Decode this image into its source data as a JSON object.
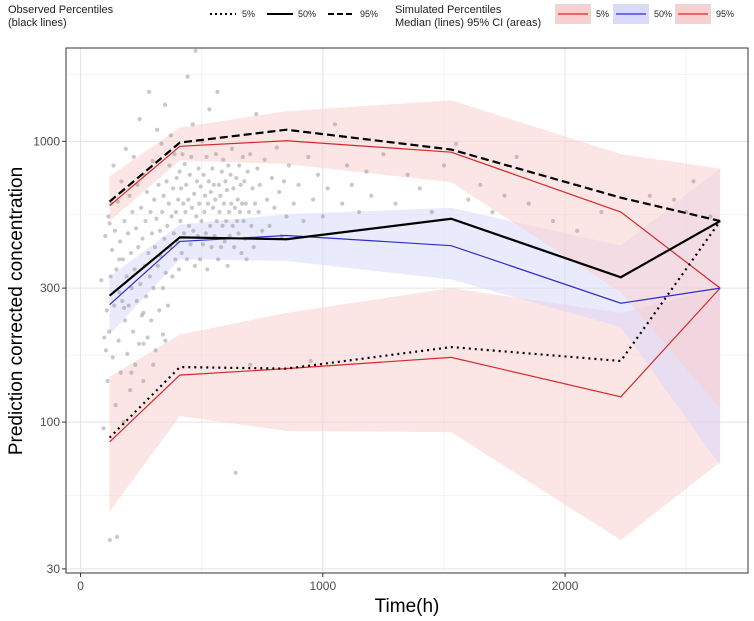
{
  "legend": {
    "observed": {
      "title_line1": "Observed Percentiles",
      "title_line2": "(black lines)",
      "items": [
        {
          "label": "5%",
          "style": "dotted"
        },
        {
          "label": "50%",
          "style": "solid"
        },
        {
          "label": "95%",
          "style": "dashed"
        }
      ]
    },
    "simulated": {
      "title_line1": "Simulated Percentiles",
      "title_line2": "Median (lines) 95% CI (areas)",
      "items": [
        {
          "label": "5%",
          "line_color": "#d42a2a",
          "fill_color": "#f9d0d0"
        },
        {
          "label": "50%",
          "line_color": "#2e2ec8",
          "fill_color": "#d9d9fb"
        },
        {
          "label": "95%",
          "line_color": "#d42a2a",
          "fill_color": "#f9d0d0"
        }
      ]
    }
  },
  "chart_data": {
    "type": "line",
    "title": "",
    "xlabel": "Time(h)",
    "ylabel": "Prediction corrected concentration",
    "xlim": [
      -60,
      2755
    ],
    "ylim": [
      29,
      2150
    ],
    "yscale": "log",
    "x_ticks": [
      0,
      1000,
      2000
    ],
    "y_ticks": [
      30,
      100,
      300,
      1000
    ],
    "grid": true,
    "x": [
      120,
      410,
      850,
      1530,
      2230,
      2640
    ],
    "observed_percentiles": [
      {
        "name": "5%",
        "style": "dotted",
        "color": "#000000",
        "values": [
          88,
          157,
          155,
          185,
          165,
          520
        ]
      },
      {
        "name": "50%",
        "style": "solid",
        "color": "#000000",
        "values": [
          282,
          455,
          448,
          530,
          328,
          520
        ]
      },
      {
        "name": "95%",
        "style": "dashed",
        "color": "#000000",
        "values": [
          610,
          990,
          1100,
          935,
          630,
          520
        ]
      }
    ],
    "simulated_medians": [
      {
        "name": "5%",
        "color": "#d42a2a",
        "values": [
          85,
          147,
          155,
          170,
          123,
          300
        ]
      },
      {
        "name": "50%",
        "color": "#2e2ec8",
        "values": [
          262,
          440,
          462,
          425,
          265,
          300
        ]
      },
      {
        "name": "95%",
        "color": "#d42a2a",
        "values": [
          590,
          960,
          1005,
          915,
          560,
          300
        ]
      }
    ],
    "simulated_ci": [
      {
        "name": "5%",
        "color": "#f9d0d0",
        "lower": [
          48,
          105,
          93,
          92,
          38,
          72
        ],
        "upper": [
          145,
          205,
          245,
          300,
          245,
          300
        ]
      },
      {
        "name": "50%",
        "color": "#d9d9fb",
        "lower": [
          205,
          380,
          375,
          322,
          218,
          70
        ],
        "upper": [
          330,
          505,
          550,
          580,
          425,
          800
        ]
      },
      {
        "name": "95%",
        "color": "#f9d0d0",
        "lower": [
          520,
          855,
          830,
          715,
          290,
          112
        ],
        "upper": [
          750,
          1120,
          1280,
          1400,
          900,
          800
        ]
      }
    ],
    "observed_points": [
      [
        86,
        320
      ],
      [
        95,
        95
      ],
      [
        98,
        200
      ],
      [
        102,
        460
      ],
      [
        105,
        180
      ],
      [
        108,
        250
      ],
      [
        112,
        140
      ],
      [
        115,
        540
      ],
      [
        118,
        210
      ],
      [
        121,
        38
      ],
      [
        124,
        330
      ],
      [
        127,
        600
      ],
      [
        130,
        410
      ],
      [
        133,
        170
      ],
      [
        136,
        820
      ],
      [
        139,
        260
      ],
      [
        142,
        480
      ],
      [
        145,
        115
      ],
      [
        148,
        350
      ],
      [
        151,
        39
      ],
      [
        154,
        610
      ],
      [
        157,
        195
      ],
      [
        160,
        290
      ],
      [
        163,
        440
      ],
      [
        166,
        150
      ],
      [
        169,
        720
      ],
      [
        172,
        270
      ],
      [
        175,
        380
      ],
      [
        178,
        100
      ],
      [
        181,
        520
      ],
      [
        184,
        230
      ],
      [
        187,
        940
      ],
      [
        190,
        330
      ],
      [
        193,
        175
      ],
      [
        196,
        470
      ],
      [
        199,
        260
      ],
      [
        202,
        640
      ],
      [
        205,
        130
      ],
      [
        208,
        400
      ],
      [
        211,
        300
      ],
      [
        214,
        560
      ],
      [
        217,
        210
      ],
      [
        220,
        880
      ],
      [
        223,
        350
      ],
      [
        226,
        160
      ],
      [
        229,
        490
      ],
      [
        232,
        270
      ],
      [
        235,
        700
      ],
      [
        238,
        420
      ],
      [
        241,
        190
      ],
      [
        244,
        1200
      ],
      [
        247,
        310
      ],
      [
        250,
        580
      ],
      [
        253,
        240
      ],
      [
        256,
        450
      ],
      [
        259,
        140
      ],
      [
        262,
        760
      ],
      [
        265,
        360
      ],
      [
        268,
        520
      ],
      [
        271,
        280
      ],
      [
        274,
        660
      ],
      [
        277,
        200
      ],
      [
        280,
        400
      ],
      [
        283,
        1500
      ],
      [
        286,
        330
      ],
      [
        289,
        560
      ],
      [
        292,
        230
      ],
      [
        295,
        470
      ],
      [
        298,
        850
      ],
      [
        301,
        300
      ],
      [
        304,
        620
      ],
      [
        307,
        420
      ],
      [
        310,
        180
      ],
      [
        313,
        530
      ],
      [
        316,
        1100
      ],
      [
        319,
        360
      ],
      [
        322,
        700
      ],
      [
        325,
        250
      ],
      [
        328,
        480
      ],
      [
        331,
        390
      ],
      [
        334,
        980
      ],
      [
        337,
        560
      ],
      [
        340,
        300
      ],
      [
        343,
        640
      ],
      [
        346,
        450
      ],
      [
        349,
        1350
      ],
      [
        352,
        340
      ],
      [
        355,
        720
      ],
      [
        358,
        500
      ],
      [
        361,
        260
      ],
      [
        364,
        600
      ],
      [
        367,
        820
      ],
      [
        370,
        420
      ],
      [
        373,
        1050
      ],
      [
        376,
        540
      ],
      [
        379,
        330
      ],
      [
        382,
        680
      ],
      [
        385,
        470
      ],
      [
        388,
        900
      ],
      [
        391,
        380
      ],
      [
        394,
        560
      ],
      [
        397,
        740
      ],
      [
        400,
        440
      ],
      [
        403,
        620
      ],
      [
        406,
        350
      ],
      [
        409,
        780
      ],
      [
        412,
        520
      ],
      [
        415,
        680
      ],
      [
        418,
        400
      ],
      [
        421,
        900
      ],
      [
        424,
        600
      ],
      [
        427,
        470
      ],
      [
        430,
        830
      ],
      [
        433,
        560
      ],
      [
        436,
        700
      ],
      [
        439,
        380
      ],
      [
        442,
        1700
      ],
      [
        445,
        620
      ],
      [
        448,
        500
      ],
      [
        451,
        760
      ],
      [
        454,
        430
      ],
      [
        457,
        880
      ],
      [
        460,
        580
      ],
      [
        463,
        1150
      ],
      [
        466,
        480
      ],
      [
        469,
        650
      ],
      [
        472,
        360
      ],
      [
        475,
        2100
      ],
      [
        478,
        540
      ],
      [
        481,
        720
      ],
      [
        484,
        460
      ],
      [
        487,
        800
      ],
      [
        490,
        600
      ],
      [
        493,
        380
      ],
      [
        496,
        690
      ],
      [
        499,
        520
      ],
      [
        502,
        1000
      ],
      [
        505,
        430
      ],
      [
        508,
        760
      ],
      [
        511,
        560
      ],
      [
        514,
        640
      ],
      [
        517,
        470
      ],
      [
        520,
        880
      ],
      [
        523,
        350
      ],
      [
        526,
        600
      ],
      [
        529,
        720
      ],
      [
        532,
        1300
      ],
      [
        535,
        500
      ],
      [
        538,
        660
      ],
      [
        541,
        420
      ],
      [
        544,
        800
      ],
      [
        547,
        580
      ],
      [
        550,
        700
      ],
      [
        553,
        460
      ],
      [
        556,
        620
      ],
      [
        559,
        900
      ],
      [
        562,
        520
      ],
      [
        565,
        1500
      ],
      [
        568,
        380
      ],
      [
        571,
        700
      ],
      [
        574,
        560
      ],
      [
        577,
        640
      ],
      [
        580,
        420
      ],
      [
        583,
        780
      ],
      [
        586,
        500
      ],
      [
        589,
        860
      ],
      [
        592,
        600
      ],
      [
        595,
        440
      ],
      [
        598,
        720
      ],
      [
        601,
        520
      ],
      [
        604,
        670
      ],
      [
        607,
        360
      ],
      [
        610,
        820
      ],
      [
        613,
        560
      ],
      [
        616,
        460
      ],
      [
        619,
        760
      ],
      [
        622,
        600
      ],
      [
        625,
        940
      ],
      [
        628,
        500
      ],
      [
        631,
        680
      ],
      [
        634,
        420
      ],
      [
        637,
        580
      ],
      [
        640,
        66
      ],
      [
        643,
        740
      ],
      [
        646,
        520
      ],
      [
        649,
        620
      ],
      [
        652,
        470
      ],
      [
        655,
        820
      ],
      [
        658,
        560
      ],
      [
        661,
        700
      ],
      [
        664,
        400
      ],
      [
        667,
        600
      ],
      [
        670,
        880
      ],
      [
        673,
        520
      ],
      [
        676,
        720
      ],
      [
        679,
        450
      ],
      [
        682,
        600
      ],
      [
        685,
        380
      ],
      [
        690,
        780
      ],
      [
        695,
        560
      ],
      [
        700,
        900
      ],
      [
        705,
        500
      ],
      [
        710,
        680
      ],
      [
        715,
        420
      ],
      [
        720,
        600
      ],
      [
        725,
        1250
      ],
      [
        730,
        800
      ],
      [
        735,
        560
      ],
      [
        740,
        700
      ],
      [
        750,
        480
      ],
      [
        760,
        860
      ],
      [
        770,
        620
      ],
      [
        780,
        500
      ],
      [
        790,
        740
      ],
      [
        800,
        580
      ],
      [
        810,
        950
      ],
      [
        820,
        660
      ],
      [
        830,
        460
      ],
      [
        840,
        720
      ],
      [
        850,
        540
      ],
      [
        860,
        820
      ],
      [
        880,
        600
      ],
      [
        900,
        700
      ],
      [
        920,
        520
      ],
      [
        940,
        880
      ],
      [
        960,
        620
      ],
      [
        980,
        760
      ],
      [
        1000,
        540
      ],
      [
        1020,
        680
      ],
      [
        1050,
        1150
      ],
      [
        1080,
        600
      ],
      [
        1100,
        820
      ],
      [
        1120,
        700
      ],
      [
        1150,
        560
      ],
      [
        1180,
        780
      ],
      [
        1200,
        640
      ],
      [
        1250,
        900
      ],
      [
        1300,
        600
      ],
      [
        1350,
        760
      ],
      [
        1400,
        680
      ],
      [
        1450,
        560
      ],
      [
        1500,
        820
      ],
      [
        1550,
        980
      ],
      [
        1600,
        620
      ],
      [
        1650,
        700
      ],
      [
        1700,
        560
      ],
      [
        1750,
        640
      ],
      [
        1800,
        880
      ],
      [
        1850,
        600
      ],
      [
        1950,
        520
      ],
      [
        2050,
        480
      ],
      [
        2150,
        560
      ],
      [
        2350,
        640
      ],
      [
        2450,
        620
      ],
      [
        2500,
        560
      ],
      [
        2530,
        720
      ],
      [
        2600,
        540
      ],
      [
        180,
        255
      ],
      [
        260,
        245
      ],
      [
        340,
        205
      ],
      [
        210,
        150
      ],
      [
        300,
        160
      ],
      [
        350,
        195
      ],
      [
        120,
        510
      ],
      [
        160,
        380
      ],
      [
        260,
        190
      ],
      [
        700,
        160
      ],
      [
        950,
        165
      ]
    ]
  }
}
